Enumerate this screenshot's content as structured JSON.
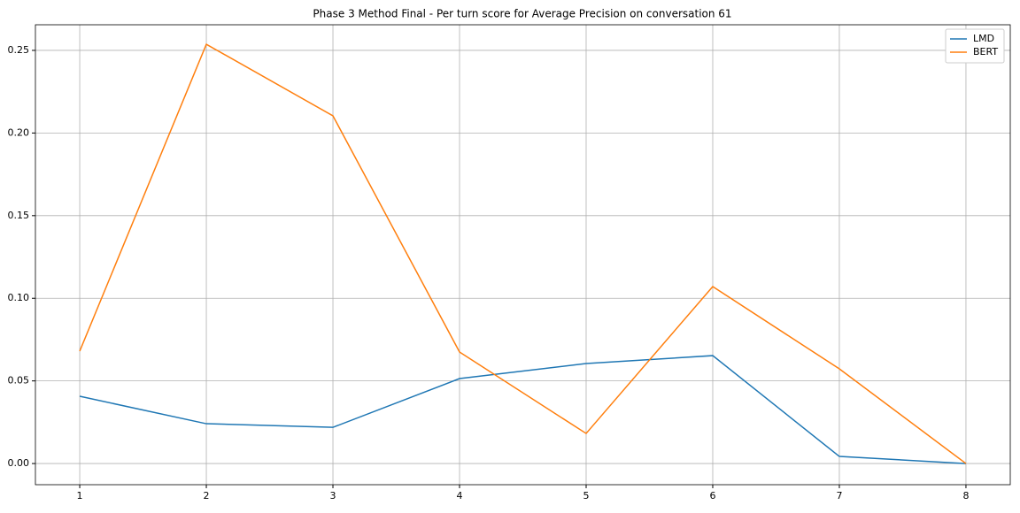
{
  "chart_data": {
    "type": "line",
    "title": "Phase 3 Method Final - Per turn score for Average Precision on conversation 61",
    "x": [
      1,
      2,
      3,
      4,
      5,
      6,
      7,
      8
    ],
    "series": [
      {
        "name": "LMD",
        "color": "#1f77b4",
        "values": [
          0.0407,
          0.0241,
          0.0219,
          0.0514,
          0.0605,
          0.0653,
          0.0043,
          0.0
        ]
      },
      {
        "name": "BERT",
        "color": "#ff7f0e",
        "values": [
          0.068,
          0.2537,
          0.2104,
          0.0675,
          0.0182,
          0.1071,
          0.0573,
          0.0
        ]
      }
    ],
    "xlim": [
      0.65,
      8.35
    ],
    "xticks": [
      1,
      2,
      3,
      4,
      5,
      6,
      7,
      8
    ],
    "ylim": [
      -0.0128,
      0.2655
    ],
    "yticks": [
      {
        "value": 0,
        "label": "0.00"
      },
      0.05,
      {
        "value": 0.1,
        "label": "0.10"
      },
      0.15,
      {
        "value": 0.2,
        "label": "0.20"
      },
      0.25
    ],
    "grid": true,
    "legend": "upper right"
  }
}
